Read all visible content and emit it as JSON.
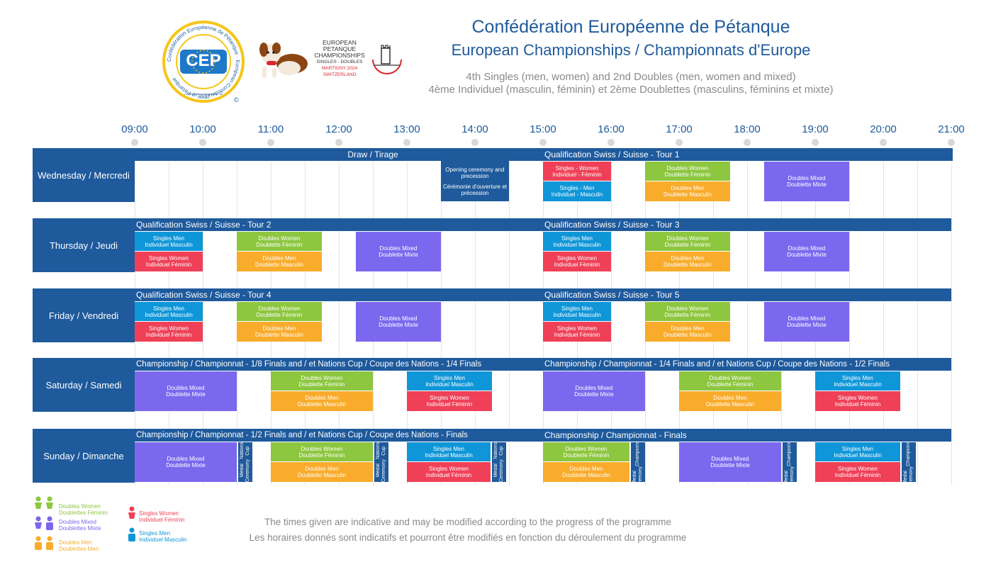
{
  "header": {
    "title": "Confédération Européenne de Pétanque",
    "subtitle": "European Championships / Championnats d'Europe",
    "line_en": "4th Singles (men, women) and 2nd Doubles (men, women and mixed)",
    "line_fr": "4ème Individuel (masculin, féminin) et 2ème Doublettes (masculins, féminins et mixte)"
  },
  "logo": {
    "ring_text": "Confédération Européenne de Pétanque",
    "letters": "CEP",
    "copyright": "©"
  },
  "event_logo": {
    "line1": "EUROPEAN",
    "line2": "PETANQUE",
    "line3": "CHAMPIONSHIPS",
    "line4": "SINGLES - DOUBLES",
    "line5": "MARTIGNY 2024",
    "line6": "SWITZERLAND"
  },
  "hours": [
    "09:00",
    "10:00",
    "11:00",
    "12:00",
    "13:00",
    "14:00",
    "15:00",
    "16:00",
    "17:00",
    "18:00",
    "19:00",
    "20:00",
    "21:00"
  ],
  "days": {
    "wed": {
      "label": "Wednesday / Mercredi",
      "bar_draw": "Draw / Tirage",
      "bar_right": "Qualification Swiss / Suisse - Tour 1",
      "opening_en": "Opening ceremony and precession",
      "opening_fr": "Cérémonie d'ouverture et précession"
    },
    "thu": {
      "label": "Thursday / Jeudi",
      "bar_left": "Qualification Swiss / Suisse - Tour 2",
      "bar_right": "Qualification Swiss / Suisse - Tour 3"
    },
    "fri": {
      "label": "Friday / Vendredi",
      "bar_left": "Qualification Swiss / Suisse - Tour 4",
      "bar_right": "Qualification Swiss / Suisse - Tour 5"
    },
    "sat": {
      "label": "Saturday / Samedi",
      "bar_left": "Championship / Championnat - 1/8 Finals and / et Nations Cup / Coupe des Nations - 1/4 Finals",
      "bar_right": "Championship / Championnat - 1/4 Finals and / et Nations Cup / Coupe des Nations - 1/2 Finals"
    },
    "sun": {
      "label": "Sunday / Dimanche",
      "bar_left": "Championship / Championnat - 1/2 Finals and / et Nations Cup / Coupe des Nations - Finals",
      "bar_right": "Championship / Championnat - Finals"
    }
  },
  "events": {
    "sw_a": "Singles - Women",
    "sw_b": "Individuel - Féminin",
    "sm_a": "Singles - Men",
    "sm_b": "Individuel - Masculin",
    "swp_a": "Singles Women",
    "swp_b": "Individuel Féminin",
    "smp_a": "Singles Men",
    "smp_b": "Individuel Masculin",
    "dw_a": "Doubles Women",
    "dw_b": "Doublette Féminin",
    "dm_a": "Doubles Men",
    "dm_b": "Doublette Masculin",
    "dx_a": "Doubles Mixed",
    "dx_b": "Doublette Mixte",
    "ncm_a": "Nations Cup",
    "ncm_b": "Medal Ceremony",
    "chm_a": "Championship",
    "chm_b": "Medal Ceremony"
  },
  "legend": {
    "dw_a": "Doubles Women",
    "dw_b": "Doublettes Féminin",
    "dx_a": "Doubles Mixed",
    "dx_b": "Doublettes Mixte",
    "dm_a": "Doubles Men",
    "dm_b": "Doublettes Men",
    "sw_a": "Singles Women",
    "sw_b": "Individuel Féminin",
    "sm_a": "Singles Men",
    "sm_b": "Individuel Masculin"
  },
  "footer": {
    "en": "The times given are indicative and may be modified according to the progress of the programme",
    "fr": "Les horaires donnés sont indicatifs et pourront être modifiés en fonction du déroulement du programme"
  },
  "colors": {
    "navy": "#1e5a9c",
    "pink": "#ef4057",
    "blue": "#0f96d8",
    "green": "#8dc63f",
    "orange": "#f9ac2b",
    "purple": "#7b68ee"
  }
}
